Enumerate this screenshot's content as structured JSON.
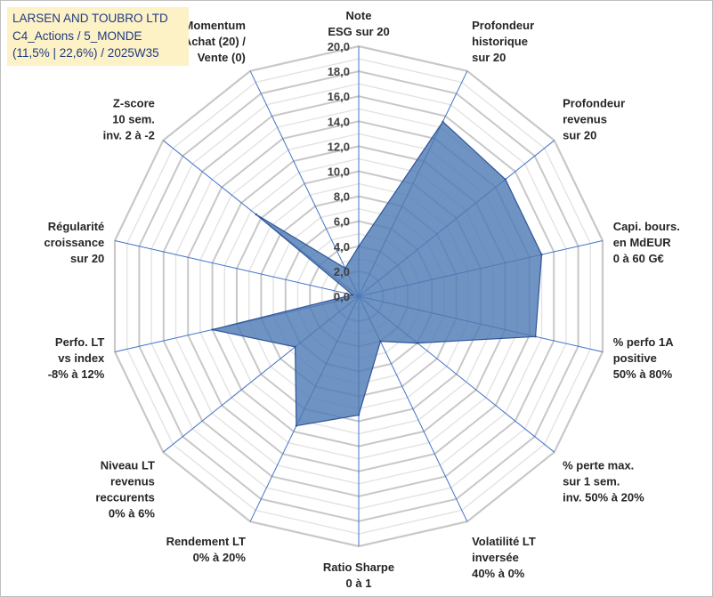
{
  "title": {
    "line1": "LARSEN AND TOUBRO LTD",
    "line2": "C4_Actions / 5_MONDE",
    "line3": "(11,5% | 22,6%) / 2025W35"
  },
  "chart_data": {
    "type": "radar",
    "categories": [
      [
        "Note",
        "ESG sur 20"
      ],
      [
        "Profondeur",
        "historique",
        "sur 20"
      ],
      [
        "Profondeur",
        "revenus",
        "sur 20"
      ],
      [
        "Capi. bours.",
        "en MdEUR",
        "0 à 60 G€"
      ],
      [
        "% perfo 1A",
        "positive",
        "50% à 80%"
      ],
      [
        "% perte max.",
        "sur 1 sem.",
        "inv. 50% à 20%"
      ],
      [
        "Volatilité LT",
        "inversée",
        "40% à 0%"
      ],
      [
        "Ratio Sharpe",
        "0 à 1"
      ],
      [
        "Rendement LT",
        "0% à 20%"
      ],
      [
        "Niveau LT",
        "revenus",
        "reccurents",
        "0% à 6%"
      ],
      [
        "Perfo. LT",
        "vs index",
        "-8% à 12%"
      ],
      [
        "Régularité",
        "croissance",
        "sur 20"
      ],
      [
        "Z-score",
        "10 sem.",
        "inv. 2 à -2"
      ],
      [
        "Momentum",
        "Achat (20) /",
        "Vente (0)"
      ]
    ],
    "values": [
      4.0,
      15.5,
      15.0,
      15.0,
      14.5,
      6.0,
      4.0,
      9.5,
      11.5,
      6.5,
      12.0,
      0.5,
      10.5,
      2.5
    ],
    "rlim": [
      0,
      20
    ],
    "rticks": [
      "0,0",
      "2,0",
      "4,0",
      "6,0",
      "8,0",
      "10,0",
      "12,0",
      "14,0",
      "16,0",
      "18,0",
      "20,0"
    ],
    "fill_color": "#4f7bb5",
    "line_color": "#2f5597",
    "spoke_color": "#4472c4",
    "grid_color": "#d0d0d0"
  }
}
